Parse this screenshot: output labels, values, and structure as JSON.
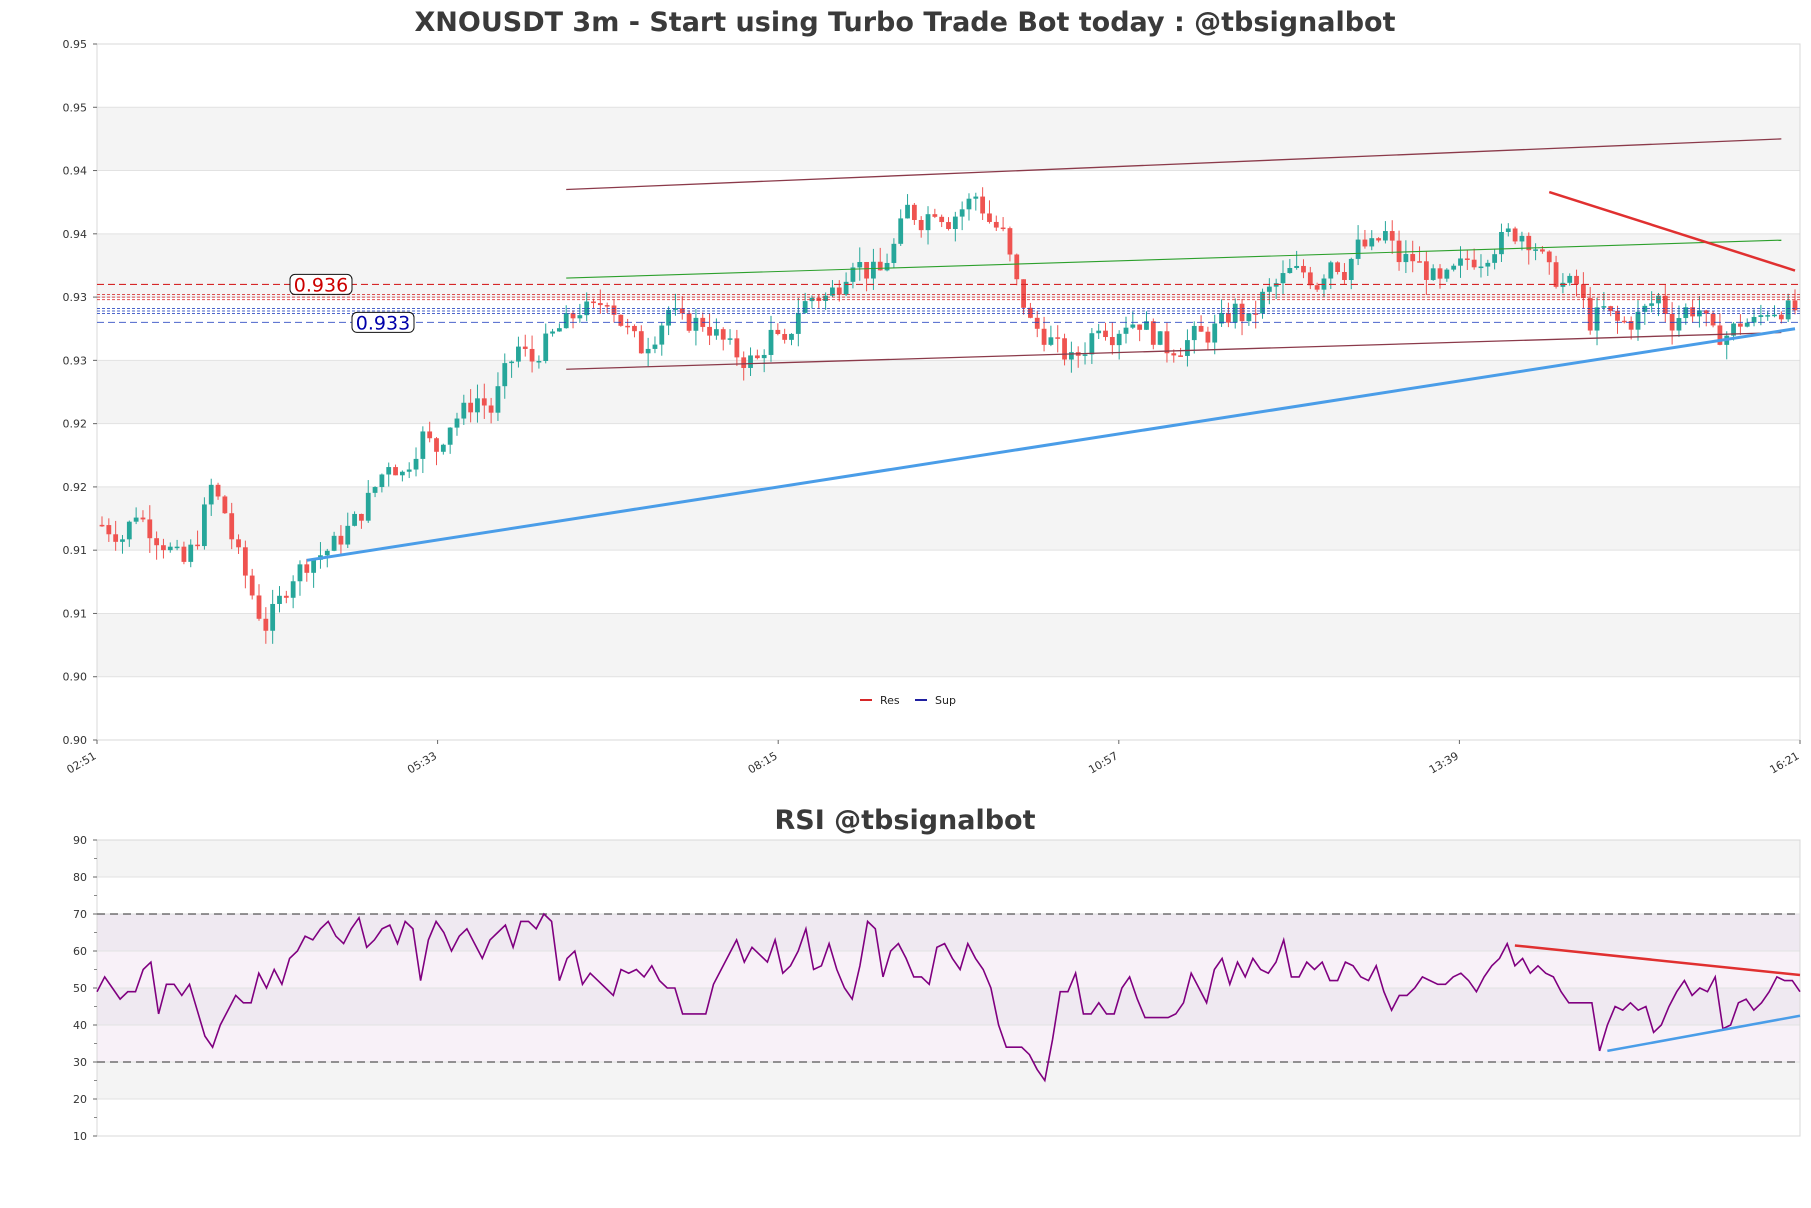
{
  "chart_data": [
    {
      "type": "candlestick",
      "title": "XNOUSDT 3m - Start using Turbo Trade Bot today : @tbsignalbot",
      "ylim": [
        0.9,
        0.955
      ],
      "y_ticks": [
        "0.95",
        "0.95",
        "0.94",
        "0.94",
        "0.93",
        "0.93",
        "0.92",
        "0.92",
        "0.91",
        "0.91",
        "0.90",
        "0.90"
      ],
      "y_tick_values": [
        0.955,
        0.95,
        0.945,
        0.94,
        0.935,
        0.93,
        0.925,
        0.92,
        0.915,
        0.91,
        0.905,
        0.9
      ],
      "x_ticks": [
        "02:51",
        "05:33",
        "08:15",
        "10:57",
        "13:39",
        "16:21"
      ],
      "legend": [
        {
          "name": "Res",
          "color": "#d62728"
        },
        {
          "name": "Sup",
          "color": "#1f1fa0"
        }
      ],
      "level_labels": [
        {
          "text": "0.936",
          "value": 0.936,
          "color": "#cc0000"
        },
        {
          "text": "0.933",
          "value": 0.933,
          "color": "#0000aa"
        }
      ],
      "colors": {
        "up": "#26a69a",
        "down": "#ef5350",
        "res": "#d62728",
        "sup": "#1f3fbf",
        "trend_up": "#4a9de8",
        "channel": "#8b3a4a",
        "green_line": "#2ca02c"
      },
      "close_path": [
        [
          0,
          0.917
        ],
        [
          3,
          0.916
        ],
        [
          5,
          0.918
        ],
        [
          8,
          0.916
        ],
        [
          10,
          0.915
        ],
        [
          12,
          0.914
        ],
        [
          14,
          0.916
        ],
        [
          16,
          0.92
        ],
        [
          18,
          0.918
        ],
        [
          19,
          0.916
        ],
        [
          21,
          0.913
        ],
        [
          23,
          0.91
        ],
        [
          24,
          0.909
        ],
        [
          26,
          0.911
        ],
        [
          28,
          0.913
        ],
        [
          30,
          0.914
        ],
        [
          33,
          0.915
        ],
        [
          35,
          0.916
        ],
        [
          38,
          0.918
        ],
        [
          40,
          0.92
        ],
        [
          42,
          0.922
        ],
        [
          44,
          0.921
        ],
        [
          47,
          0.924
        ],
        [
          49,
          0.923
        ],
        [
          51,
          0.925
        ],
        [
          53,
          0.926
        ],
        [
          55,
          0.927
        ],
        [
          57,
          0.926
        ],
        [
          59,
          0.929
        ],
        [
          61,
          0.931
        ],
        [
          63,
          0.93
        ],
        [
          66,
          0.932
        ],
        [
          68,
          0.933
        ],
        [
          70,
          0.934
        ],
        [
          72,
          0.934
        ],
        [
          74,
          0.935
        ],
        [
          76,
          0.933
        ],
        [
          79,
          0.931
        ],
        [
          81,
          0.932
        ],
        [
          83,
          0.934
        ],
        [
          85,
          0.933
        ],
        [
          88,
          0.933
        ],
        [
          90,
          0.932
        ],
        [
          92,
          0.931
        ],
        [
          94,
          0.93
        ],
        [
          96,
          0.93
        ],
        [
          98,
          0.932
        ],
        [
          100,
          0.931
        ],
        [
          102,
          0.934
        ],
        [
          104,
          0.935
        ],
        [
          106,
          0.935
        ],
        [
          108,
          0.936
        ],
        [
          110,
          0.938
        ],
        [
          112,
          0.937
        ],
        [
          114,
          0.937
        ],
        [
          116,
          0.939
        ],
        [
          118,
          0.942
        ],
        [
          120,
          0.941
        ],
        [
          122,
          0.942
        ],
        [
          124,
          0.941
        ],
        [
          126,
          0.942
        ],
        [
          128,
          0.943
        ],
        [
          130,
          0.941
        ],
        [
          132,
          0.94
        ],
        [
          134,
          0.936
        ],
        [
          136,
          0.933
        ],
        [
          138,
          0.932
        ],
        [
          140,
          0.931
        ],
        [
          142,
          0.93
        ],
        [
          144,
          0.931
        ],
        [
          146,
          0.933
        ],
        [
          148,
          0.932
        ],
        [
          150,
          0.933
        ],
        [
          152,
          0.933
        ],
        [
          154,
          0.932
        ],
        [
          156,
          0.931
        ],
        [
          158,
          0.931
        ],
        [
          160,
          0.932
        ],
        [
          162,
          0.932
        ],
        [
          164,
          0.933
        ],
        [
          166,
          0.934
        ],
        [
          168,
          0.933
        ],
        [
          170,
          0.935
        ],
        [
          172,
          0.936
        ],
        [
          174,
          0.937
        ],
        [
          176,
          0.937
        ],
        [
          178,
          0.936
        ],
        [
          180,
          0.938
        ],
        [
          182,
          0.937
        ],
        [
          184,
          0.939
        ],
        [
          186,
          0.939
        ],
        [
          188,
          0.94
        ],
        [
          190,
          0.938
        ],
        [
          192,
          0.938
        ],
        [
          194,
          0.937
        ],
        [
          196,
          0.936
        ],
        [
          198,
          0.937
        ],
        [
          200,
          0.938
        ],
        [
          202,
          0.938
        ],
        [
          204,
          0.939
        ],
        [
          206,
          0.94
        ],
        [
          208,
          0.94
        ],
        [
          210,
          0.939
        ],
        [
          212,
          0.937
        ],
        [
          214,
          0.936
        ],
        [
          216,
          0.936
        ],
        [
          218,
          0.933
        ],
        [
          220,
          0.934
        ],
        [
          222,
          0.933
        ],
        [
          224,
          0.933
        ],
        [
          226,
          0.934
        ],
        [
          228,
          0.935
        ],
        [
          230,
          0.933
        ],
        [
          232,
          0.934
        ],
        [
          234,
          0.934
        ],
        [
          236,
          0.932
        ],
        [
          238,
          0.932
        ],
        [
          240,
          0.933
        ],
        [
          242,
          0.933
        ],
        [
          244,
          0.934
        ],
        [
          246,
          0.934
        ],
        [
          248,
          0.934
        ]
      ]
    },
    {
      "type": "line",
      "title": "RSI @tbsignalbot",
      "ylim": [
        10,
        90
      ],
      "y_ticks": [
        "90",
        "80",
        "70",
        "60",
        "50",
        "40",
        "30",
        "20",
        "10"
      ],
      "y_tick_values": [
        90,
        80,
        70,
        60,
        50,
        40,
        30,
        20,
        10
      ],
      "overbought": 70,
      "oversold": 30,
      "color": "#800080",
      "values": [
        49,
        53,
        50,
        47,
        49,
        49,
        55,
        57,
        43,
        51,
        51,
        48,
        51,
        44,
        37,
        34,
        40,
        44,
        48,
        46,
        46,
        54,
        50,
        55,
        51,
        58,
        60,
        64,
        63,
        66,
        68,
        64,
        62,
        66,
        69,
        61,
        63,
        66,
        67,
        62,
        68,
        66,
        52,
        63,
        68,
        65,
        60,
        64,
        66,
        62,
        58,
        63,
        65,
        67,
        61,
        68,
        68,
        66,
        70,
        68,
        52,
        58,
        60,
        51,
        54,
        52,
        50,
        48,
        55,
        54,
        55,
        53,
        56,
        52,
        50,
        50,
        43,
        43,
        43,
        43,
        51,
        55,
        59,
        63,
        57,
        61,
        59,
        57,
        63,
        54,
        56,
        60,
        66,
        55,
        56,
        62,
        55,
        50,
        47,
        56,
        68,
        66,
        53,
        60,
        62,
        58,
        53,
        53,
        51,
        61,
        62,
        58,
        55,
        62,
        58,
        55,
        50,
        40,
        34,
        34,
        34,
        32,
        28,
        25,
        36,
        49,
        49,
        54,
        43,
        43,
        46,
        43,
        43,
        50,
        53,
        47,
        42,
        42,
        42,
        42,
        43,
        46,
        54,
        50,
        46,
        55,
        58,
        51,
        57,
        53,
        58,
        55,
        54,
        57,
        63,
        53,
        53,
        57,
        55,
        57,
        52,
        52,
        57,
        56,
        53,
        52,
        56,
        49,
        44,
        48,
        48,
        50,
        53,
        52,
        51,
        51,
        53,
        54,
        52,
        49,
        53,
        56,
        58,
        62,
        56,
        58,
        54,
        56,
        54,
        53,
        49,
        46,
        46,
        46,
        46,
        33,
        40,
        45,
        44,
        46,
        44,
        45,
        38,
        40,
        45,
        49,
        52,
        48,
        50,
        49,
        53,
        39,
        40,
        46,
        47,
        44,
        46,
        49,
        53,
        52,
        52,
        49
      ]
    }
  ]
}
